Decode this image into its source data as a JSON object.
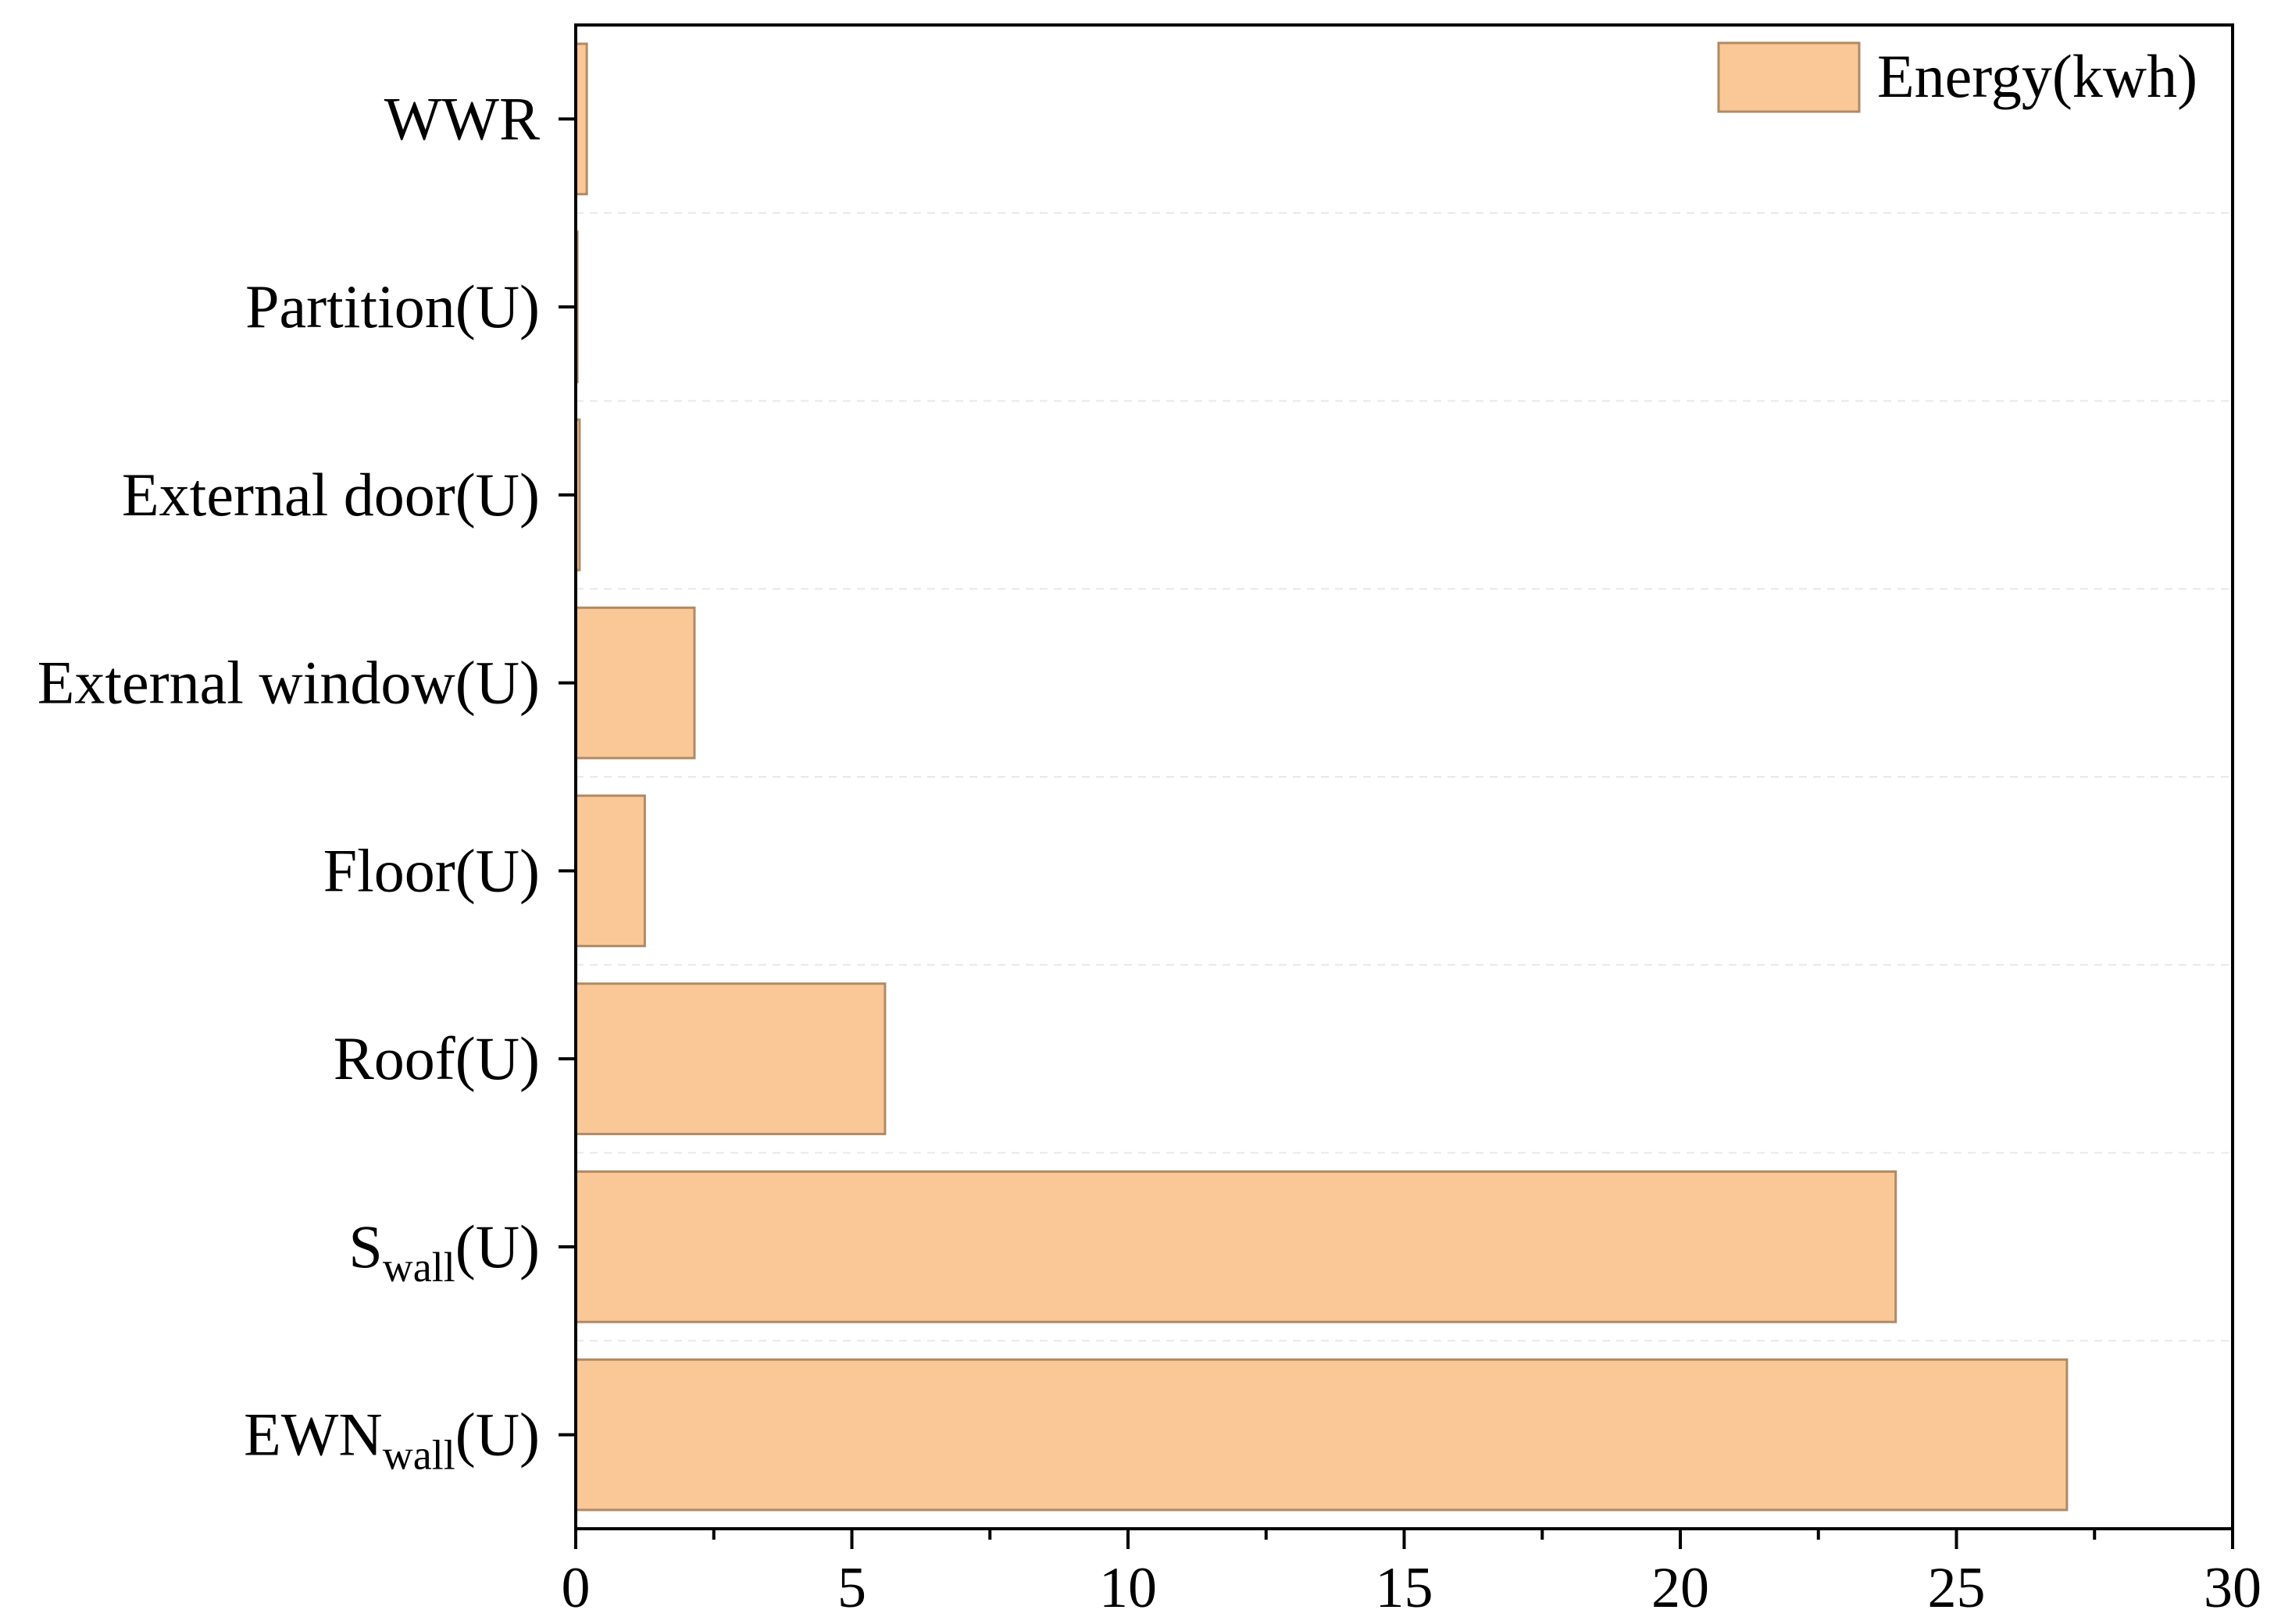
{
  "chart_data": {
    "type": "bar",
    "orientation": "horizontal",
    "categories": [
      {
        "main": "WWR",
        "sub": "",
        "suffix": ""
      },
      {
        "main": "Partition(U)",
        "sub": "",
        "suffix": ""
      },
      {
        "main": "External door(U)",
        "sub": "",
        "suffix": ""
      },
      {
        "main": "External window(U)",
        "sub": "",
        "suffix": ""
      },
      {
        "main": "Floor(U)",
        "sub": "",
        "suffix": ""
      },
      {
        "main": "Roof(U)",
        "sub": "",
        "suffix": ""
      },
      {
        "main": "S",
        "sub": "wall",
        "suffix": "(U)"
      },
      {
        "main": "EWN",
        "sub": "wall",
        "suffix": "(U)"
      }
    ],
    "series": [
      {
        "name": "Energy(kwh)",
        "values": [
          0.2,
          0.03,
          0.07,
          2.15,
          1.25,
          5.6,
          23.9,
          27.0
        ]
      }
    ],
    "xlim": [
      0,
      30
    ],
    "xticks": [
      "0",
      "5",
      "10",
      "15",
      "20",
      "25",
      "30"
    ],
    "xlabel": "",
    "ylabel": "",
    "grid": "horizontal dashed between categories",
    "legend": "top-right",
    "colors": {
      "bar_fill": "#FAC896",
      "bar_stroke": "#B08A64",
      "grid": "#e8e8e8"
    }
  }
}
